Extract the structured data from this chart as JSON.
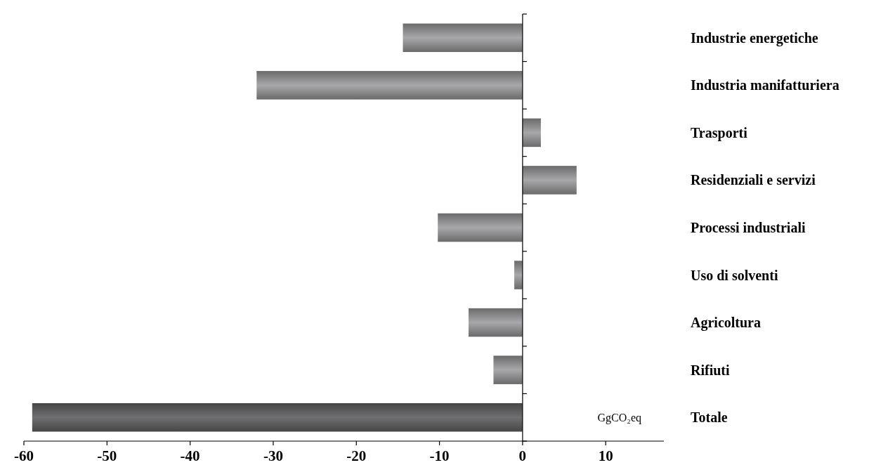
{
  "chart_data": {
    "type": "bar",
    "orientation": "horizontal",
    "categories": [
      "Industrie energetiche",
      "Industria manifatturiera",
      "Trasporti",
      "Residenziali e servizi",
      "Processi industriali",
      "Uso di solventi",
      "Agricoltura",
      "Rifiuti",
      "Totale"
    ],
    "values": [
      -14.4,
      -32.0,
      2.2,
      6.5,
      -10.2,
      -1.0,
      -6.5,
      -3.5,
      -59.0
    ],
    "colors": [
      "#a8a8aa",
      "#a8a8aa",
      "#a8a8aa",
      "#a8a8aa",
      "#a8a8aa",
      "#a8a8aa",
      "#a8a8aa",
      "#a8a8aa",
      "#6f6f71"
    ],
    "xlim": [
      -60,
      17
    ],
    "xticks": [
      -60,
      -50,
      -40,
      -30,
      -20,
      -10,
      0,
      10
    ],
    "annotations": [
      "GgCO₂eq"
    ]
  }
}
